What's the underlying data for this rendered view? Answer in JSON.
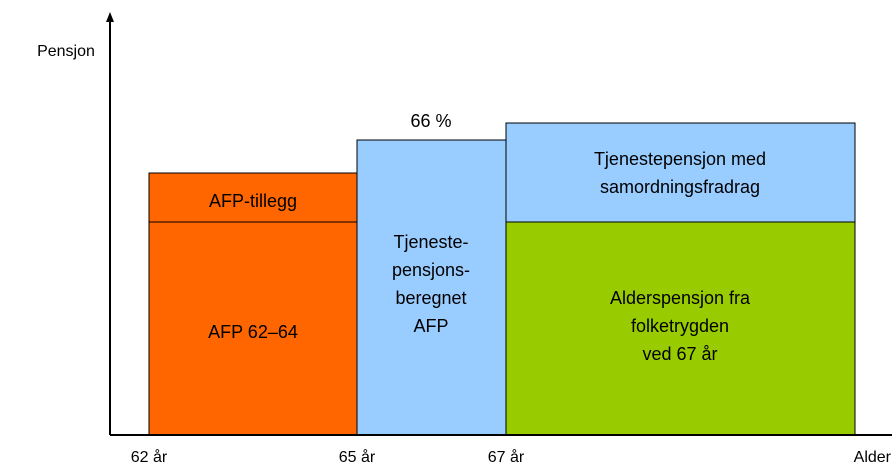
{
  "axes": {
    "y_label": "Pensjon",
    "x_label": "Alder",
    "ticks": [
      "62 år",
      "65 år",
      "67 år"
    ]
  },
  "blocks": {
    "afp_tillegg": [
      "AFP-tillegg"
    ],
    "afp": [
      "AFP 62–64"
    ],
    "tjenestepensjonsberegnet": [
      "Tjeneste-",
      "pensjons-",
      "beregnet",
      "AFP"
    ],
    "tjenestepensjon": [
      "Tjenestepensjon med",
      "samordningsfradrag"
    ],
    "alderspensjon": [
      "Alderspensjon fra",
      "folketrygden",
      "ved 67 år"
    ]
  },
  "annotation": "66 %"
}
